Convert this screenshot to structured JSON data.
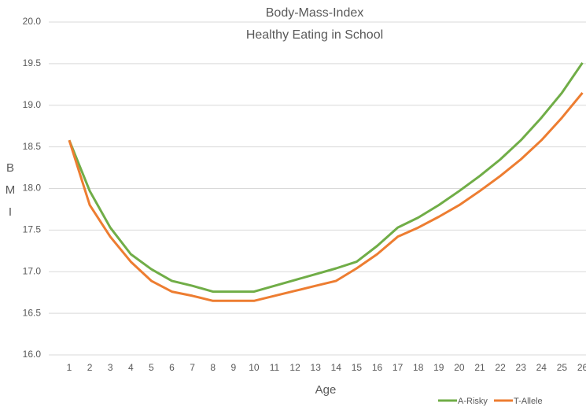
{
  "chart_data": {
    "type": "line",
    "title": "Body-Mass-Index",
    "subtitle": "Healthy Eating in School",
    "x_label": "Age",
    "y_label": "BMI",
    "categories": [
      1,
      2,
      3,
      4,
      5,
      6,
      7,
      8,
      9,
      10,
      11,
      12,
      13,
      14,
      15,
      16,
      17,
      18,
      19,
      20,
      21,
      22,
      23,
      24,
      25,
      26
    ],
    "series": [
      {
        "name": "A-Risky",
        "color": "#70ad47",
        "values": [
          18.58,
          17.97,
          17.53,
          17.21,
          17.03,
          16.89,
          16.83,
          16.76,
          16.76,
          16.76,
          16.83,
          16.9,
          16.97,
          17.04,
          17.12,
          17.31,
          17.53,
          17.65,
          17.8,
          17.97,
          18.15,
          18.35,
          18.58,
          18.85,
          19.15,
          19.51
        ]
      },
      {
        "name": "T-Allele",
        "color": "#ed7d31",
        "values": [
          18.58,
          17.8,
          17.42,
          17.12,
          16.89,
          16.76,
          16.71,
          16.65,
          16.65,
          16.65,
          16.71,
          16.77,
          16.83,
          16.89,
          17.04,
          17.21,
          17.42,
          17.53,
          17.66,
          17.8,
          17.97,
          18.15,
          18.35,
          18.58,
          18.85,
          19.15
        ]
      }
    ],
    "ylim": [
      16,
      20
    ],
    "yticks": [
      {
        "value": 16,
        "label": "16.0"
      },
      {
        "value": 16.5,
        "label": "16.5"
      },
      {
        "value": 17,
        "label": "17.0"
      },
      {
        "value": 17.5,
        "label": "17.5"
      },
      {
        "value": 18,
        "label": "18.0"
      },
      {
        "value": 18.5,
        "label": "18.5"
      },
      {
        "value": 19,
        "label": "19.0"
      },
      {
        "value": 19.5,
        "label": "19.5"
      },
      {
        "value": 20,
        "label": "20.0"
      }
    ],
    "grid": true,
    "legend": "bottom-right"
  }
}
